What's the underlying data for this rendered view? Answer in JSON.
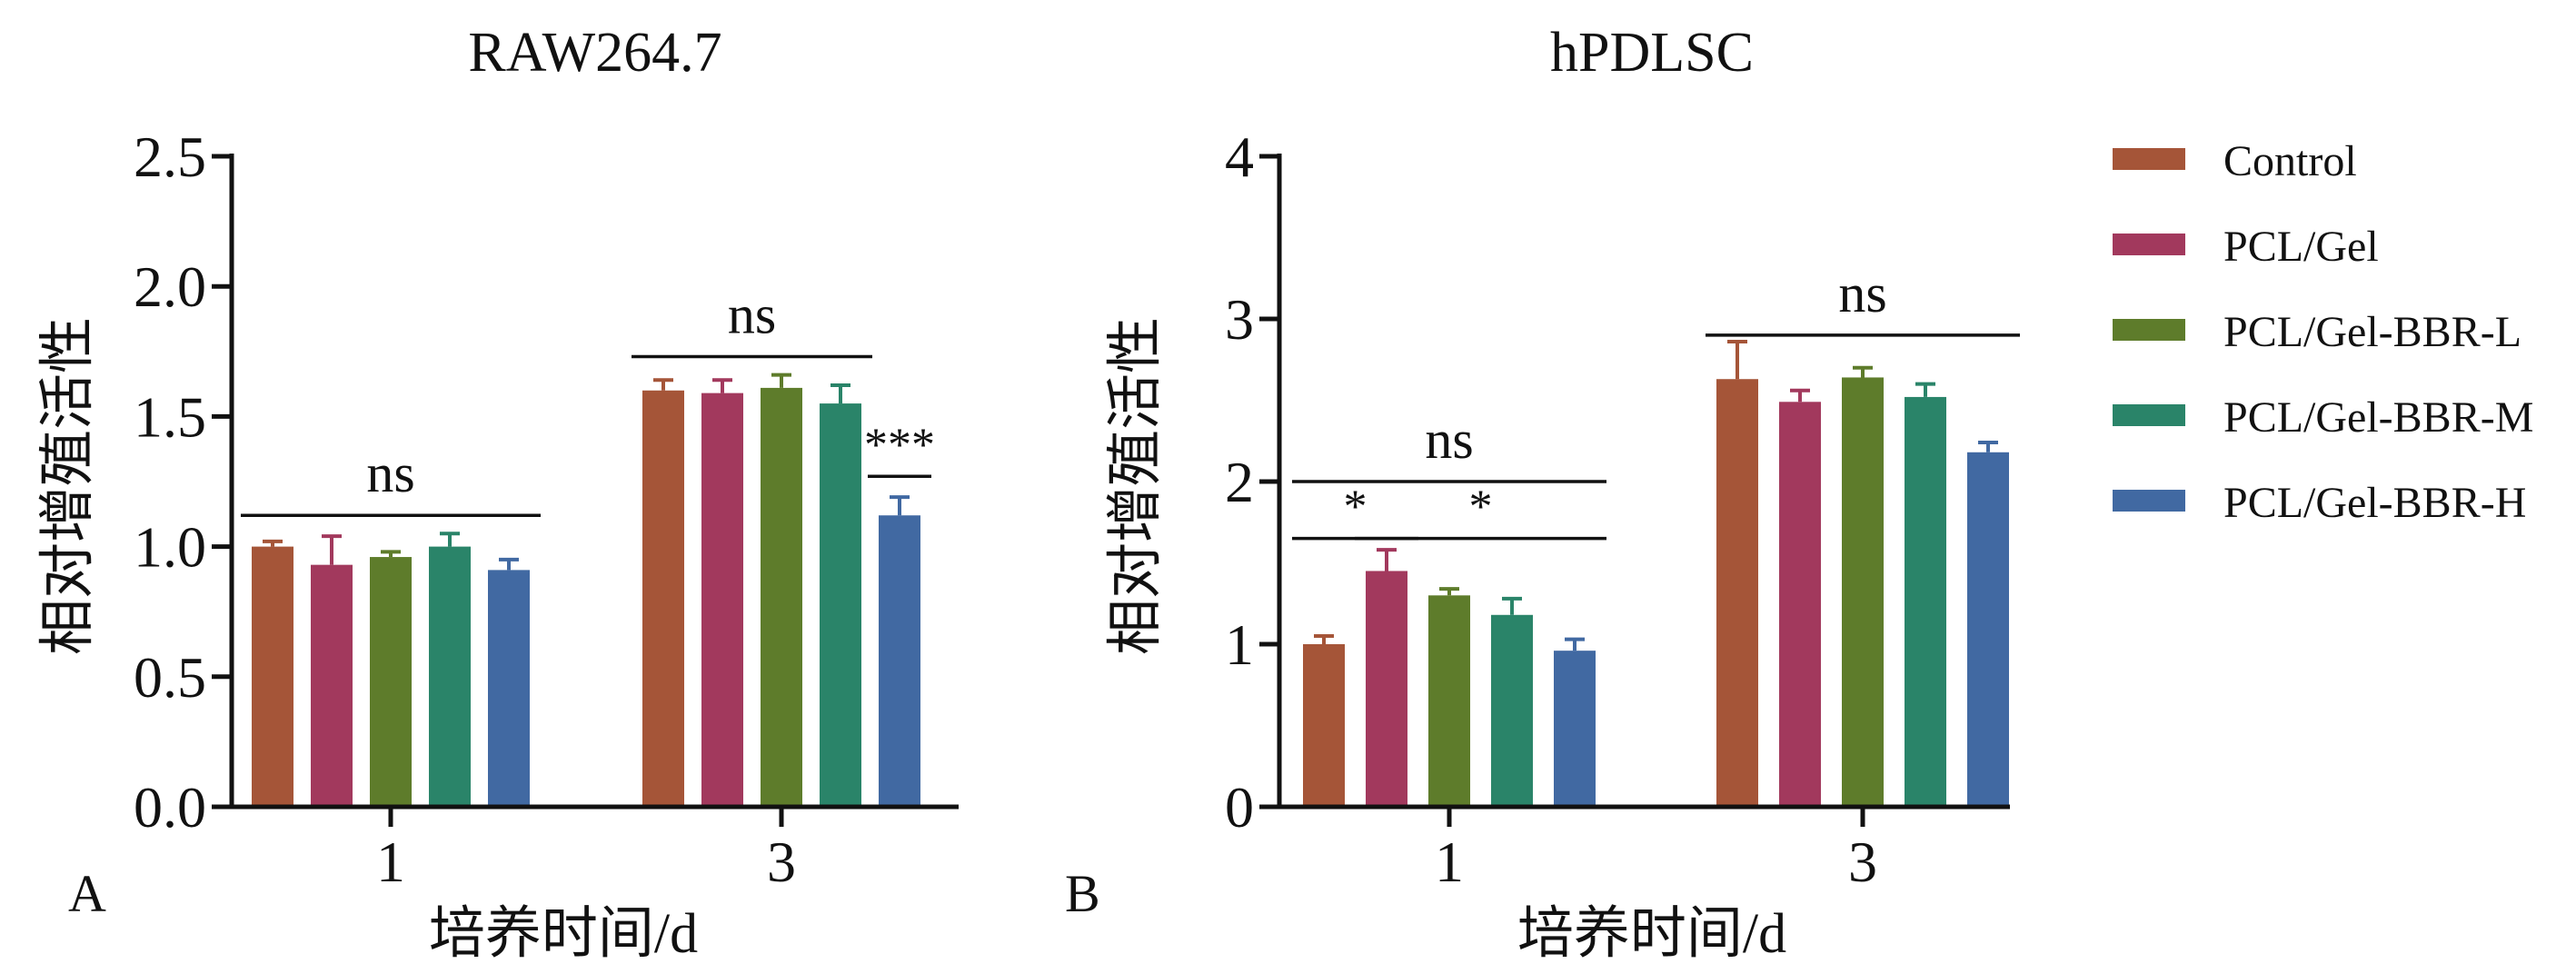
{
  "chart_data": [
    {
      "type": "bar",
      "panel_label": "A",
      "title": "RAW264.7",
      "xlabel": "培养时间/d",
      "ylabel": "相对增殖活性",
      "ylim": [
        0,
        2.5
      ],
      "yticks": [
        "0.0",
        "0.5",
        "1.0",
        "1.5",
        "2.0",
        "2.5"
      ],
      "categories": [
        "1",
        "3"
      ],
      "series": [
        {
          "name": "Control",
          "color": "#A55538",
          "values": [
            1.0,
            1.6
          ],
          "errors": [
            0.02,
            0.04
          ]
        },
        {
          "name": "PCL/Gel",
          "color": "#A2395D",
          "values": [
            0.93,
            1.59
          ],
          "errors": [
            0.11,
            0.05
          ]
        },
        {
          "name": "PCL/Gel-BBR-L",
          "color": "#5E7C2B",
          "values": [
            0.96,
            1.61
          ],
          "errors": [
            0.02,
            0.05
          ]
        },
        {
          "name": "PCL/Gel-BBR-M",
          "color": "#2A8469",
          "values": [
            1.0,
            1.55
          ],
          "errors": [
            0.05,
            0.07
          ]
        },
        {
          "name": "PCL/Gel-BBR-H",
          "color": "#4169A2",
          "values": [
            0.91,
            1.12
          ],
          "errors": [
            0.04,
            0.07
          ]
        }
      ],
      "annotations": [
        {
          "text": "ns",
          "category": "1",
          "span": [
            0,
            4
          ],
          "y": 1.12
        },
        {
          "text": "ns",
          "category": "3",
          "span": [
            0,
            3
          ],
          "y": 1.73
        },
        {
          "text": "***",
          "category": "3",
          "span": [
            4,
            4
          ],
          "y": 1.27
        }
      ]
    },
    {
      "type": "bar",
      "panel_label": "B",
      "title": "hPDLSC",
      "xlabel": "培养时间/d",
      "ylabel": "相对增殖活性",
      "ylim": [
        0,
        4
      ],
      "yticks": [
        "0",
        "1",
        "2",
        "3",
        "4"
      ],
      "categories": [
        "1",
        "3"
      ],
      "series": [
        {
          "name": "Control",
          "color": "#A55538",
          "values": [
            1.0,
            2.63
          ],
          "errors": [
            0.05,
            0.23
          ]
        },
        {
          "name": "PCL/Gel",
          "color": "#A2395D",
          "values": [
            1.45,
            2.49
          ],
          "errors": [
            0.13,
            0.07
          ]
        },
        {
          "name": "PCL/Gel-BBR-L",
          "color": "#5E7C2B",
          "values": [
            1.3,
            2.64
          ],
          "errors": [
            0.04,
            0.06
          ]
        },
        {
          "name": "PCL/Gel-BBR-M",
          "color": "#2A8469",
          "values": [
            1.18,
            2.52
          ],
          "errors": [
            0.1,
            0.08
          ]
        },
        {
          "name": "PCL/Gel-BBR-H",
          "color": "#4169A2",
          "values": [
            0.96,
            2.18
          ],
          "errors": [
            0.07,
            0.06
          ]
        }
      ],
      "annotations": [
        {
          "text": "ns",
          "category": "1",
          "span": [
            0,
            4
          ],
          "y": 2.0
        },
        {
          "text": "*",
          "category": "1",
          "span": [
            0,
            1
          ],
          "y": 1.65
        },
        {
          "text": "*",
          "category": "1",
          "span": [
            1,
            4
          ],
          "y": 1.65
        },
        {
          "text": "ns",
          "category": "3",
          "span": [
            0,
            4
          ],
          "y": 2.9
        }
      ]
    }
  ],
  "legend": {
    "placement": "right",
    "items": [
      {
        "label": "Control",
        "color": "#A55538"
      },
      {
        "label": "PCL/Gel",
        "color": "#A2395D"
      },
      {
        "label": "PCL/Gel-BBR-L",
        "color": "#5E7C2B"
      },
      {
        "label": "PCL/Gel-BBR-M",
        "color": "#2A8469"
      },
      {
        "label": "PCL/Gel-BBR-H",
        "color": "#4169A2"
      }
    ]
  }
}
